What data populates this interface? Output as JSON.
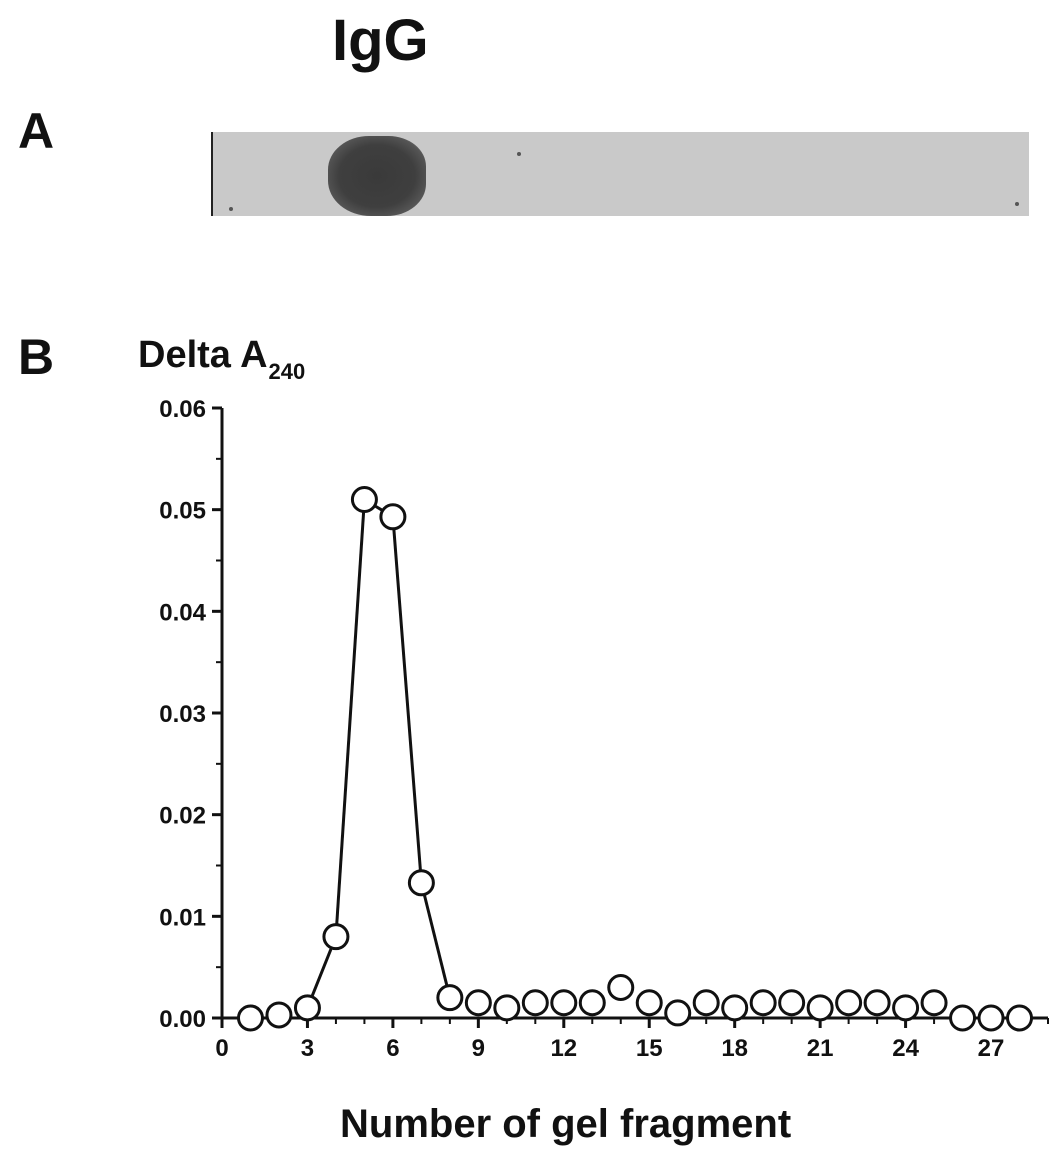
{
  "panel_a": {
    "letter": "A",
    "title": "IgG"
  },
  "panel_b": {
    "letter": "B"
  },
  "chart_data": {
    "type": "line",
    "title": "",
    "ylabel": "Delta A",
    "ylabel_subscript": "240",
    "xlabel": "Number of gel fragment",
    "xlim": [
      0,
      29
    ],
    "ylim": [
      0,
      0.06
    ],
    "x_ticks": [
      "0",
      "3",
      "6",
      "9",
      "12",
      "15",
      "18",
      "21",
      "24",
      "27"
    ],
    "y_ticks": [
      "0.00",
      "0.01",
      "0.02",
      "0.03",
      "0.04",
      "0.05",
      "0.06"
    ],
    "grid": false,
    "marker": "open-circle",
    "connected_x_range": [
      3,
      8
    ],
    "x": [
      1,
      2,
      3,
      4,
      5,
      6,
      7,
      8,
      9,
      10,
      11,
      12,
      13,
      14,
      15,
      16,
      17,
      18,
      19,
      20,
      21,
      22,
      23,
      24,
      25,
      26,
      27,
      28
    ],
    "y": [
      0.0,
      0.0003,
      0.001,
      0.008,
      0.051,
      0.0493,
      0.0133,
      0.002,
      0.0015,
      0.001,
      0.0015,
      0.0015,
      0.0015,
      0.003,
      0.0015,
      0.0005,
      0.0015,
      0.001,
      0.0015,
      0.0015,
      0.001,
      0.0015,
      0.0015,
      0.001,
      0.0015,
      0.0,
      0.0,
      0.0
    ]
  }
}
